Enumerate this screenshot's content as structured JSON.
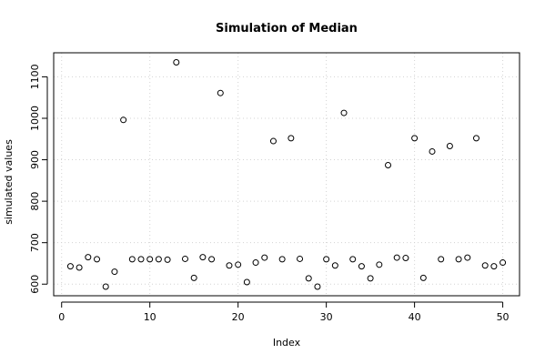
{
  "chart_data": {
    "type": "scatter",
    "title": "Simulation of Median",
    "xlabel": "Index",
    "ylabel": "simulated values",
    "xlim": [
      -0.9,
      51.9
    ],
    "ylim": [
      572,
      1158
    ],
    "x_ticks": [
      0,
      10,
      20,
      30,
      40,
      50
    ],
    "y_ticks": [
      600,
      700,
      800,
      900,
      1000,
      1100
    ],
    "grid": true,
    "series": [
      {
        "x": [
          1,
          2,
          3,
          4,
          5,
          6,
          7,
          8,
          9,
          10,
          11,
          12,
          13,
          14,
          15,
          16,
          17,
          18,
          19,
          20,
          21,
          22,
          23,
          24,
          25,
          26,
          27,
          28,
          29,
          30,
          31,
          32,
          33,
          34,
          35,
          36,
          37,
          38,
          39,
          40,
          41,
          42,
          43,
          44,
          45,
          46,
          47,
          48,
          49,
          50
        ],
        "values": [
          643,
          640,
          665,
          660,
          594,
          630,
          996,
          660,
          660,
          660,
          660,
          659,
          1135,
          661,
          615,
          665,
          660,
          1061,
          645,
          647,
          605,
          652,
          664,
          945,
          660,
          952,
          661,
          614,
          594,
          660,
          645,
          1013,
          660,
          643,
          614,
          647,
          887,
          664,
          663,
          952,
          615,
          920,
          660,
          933,
          660,
          664,
          952,
          645,
          643,
          652
        ]
      }
    ]
  }
}
